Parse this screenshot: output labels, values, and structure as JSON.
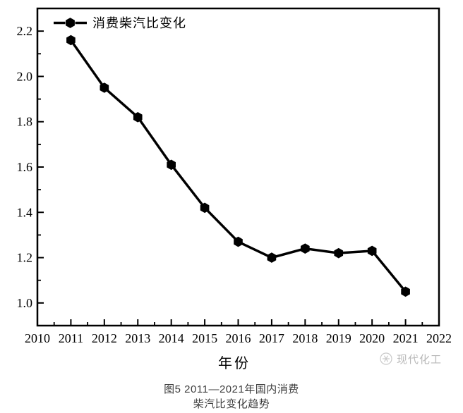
{
  "colors": {
    "line": "#000000",
    "axis": "#000000",
    "background": "#ffffff",
    "caption_text": "#3d3d3d",
    "watermark": "#b9b9b9"
  },
  "chart_data": {
    "type": "line",
    "title": "图5 2011—2021年国内消费柴汽比变化趋势",
    "xlabel": "年份",
    "ylabel": "",
    "xlim": [
      2010,
      2022
    ],
    "ylim": [
      0.9,
      2.3
    ],
    "grid": false,
    "legend_position": "top-left",
    "marker": "hexagon",
    "x_tick_labels": [
      "2010",
      "2011",
      "2012",
      "2013",
      "2014",
      "2015",
      "2016",
      "2017",
      "2018",
      "2019",
      "2020",
      "2021",
      "2022"
    ],
    "y_tick_labels": [
      "1.0",
      "1.2",
      "1.4",
      "1.6",
      "1.8",
      "2.0",
      "2.2"
    ],
    "x_minor_tick_step": 0.5,
    "y_minor_tick_step": 0.1,
    "series": [
      {
        "name": "消费柴汽比变化",
        "x": [
          2011,
          2012,
          2013,
          2014,
          2015,
          2016,
          2017,
          2018,
          2019,
          2020,
          2021
        ],
        "values": [
          2.16,
          1.95,
          1.82,
          1.61,
          1.42,
          1.27,
          1.2,
          1.24,
          1.22,
          1.23,
          1.05
        ]
      }
    ]
  },
  "figure": {
    "caption_line1": "图5  2011—2021年国内消费",
    "caption_line2": "柴汽比变化趋势",
    "watermark_text": "现代化工",
    "watermark_logo": "snowflake-circle-icon"
  }
}
